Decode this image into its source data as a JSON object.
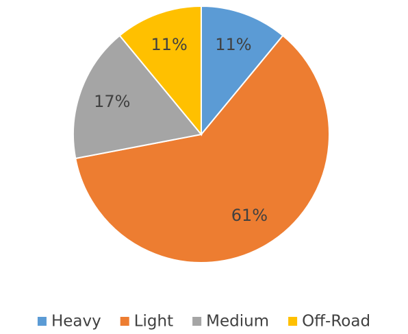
{
  "chart_data": {
    "type": "pie",
    "categories": [
      "Heavy",
      "Light",
      "Medium",
      "Off-Road"
    ],
    "values": [
      11,
      61,
      17,
      11
    ],
    "value_labels": [
      "11%",
      "61%",
      "17%",
      "11%"
    ],
    "colors": [
      "#5b9bd5",
      "#ed7d31",
      "#a5a5a5",
      "#ffc000"
    ],
    "legend": "bottom"
  }
}
